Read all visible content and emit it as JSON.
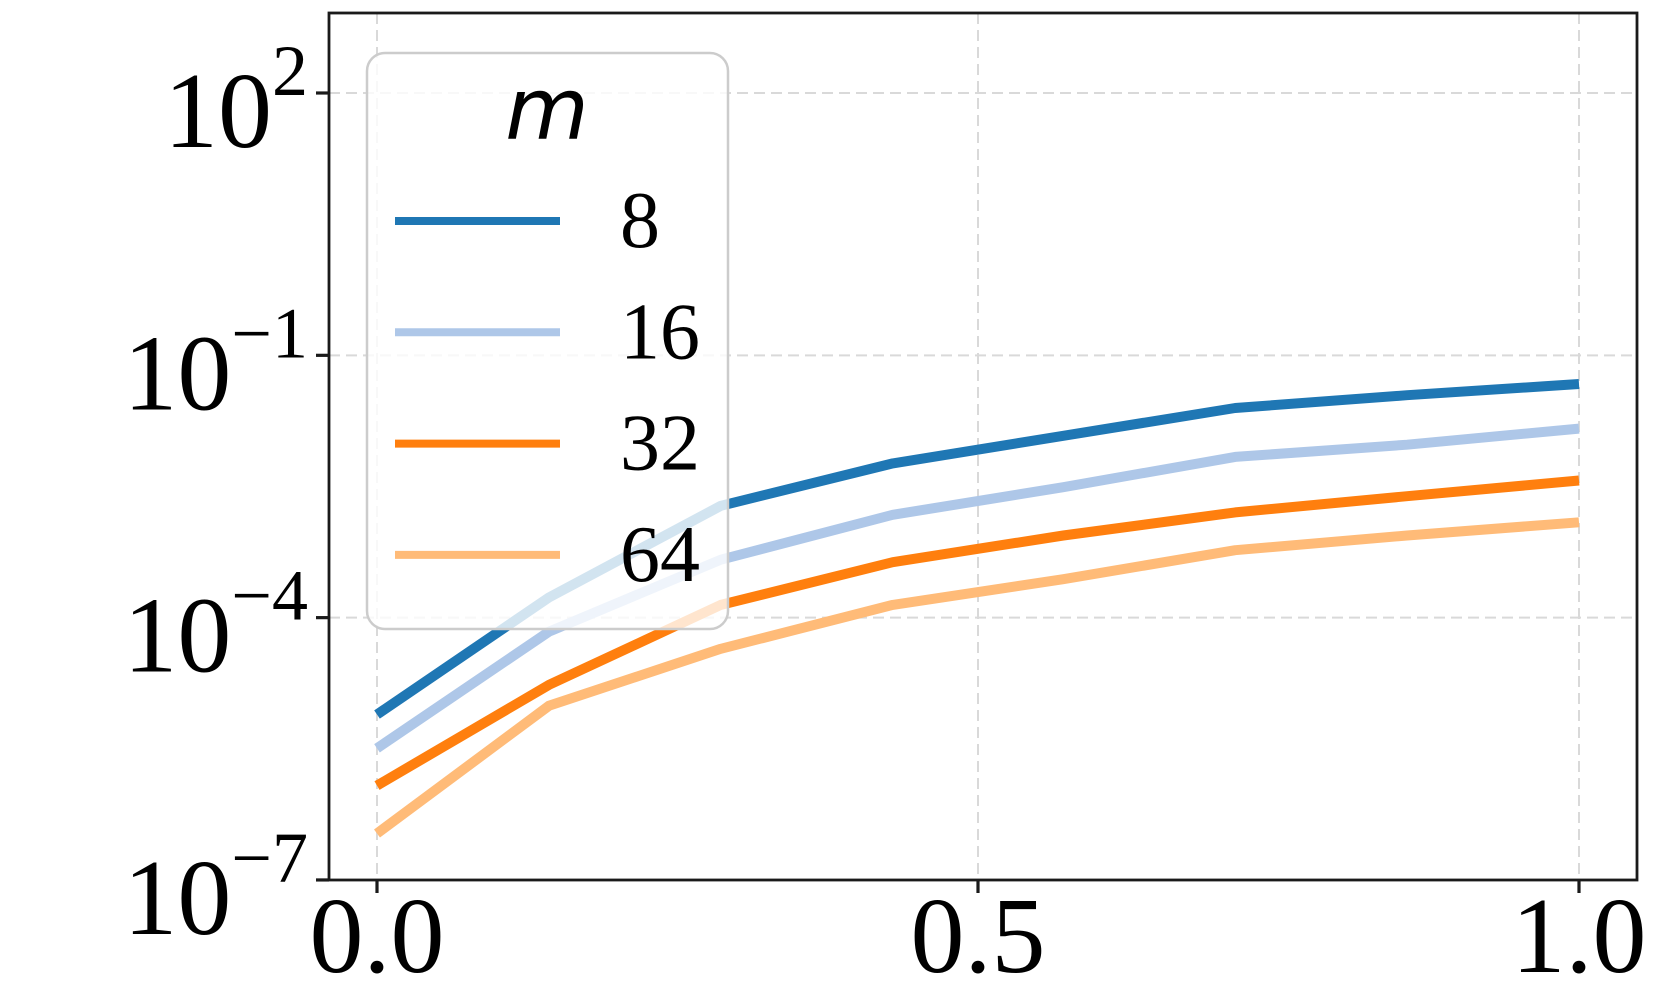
{
  "chart_data": {
    "type": "line",
    "title": "",
    "xlabel": "",
    "ylabel": "",
    "yscale": "log",
    "grid": true,
    "grid_style": "dashed",
    "xlim": [
      -0.04,
      1.048
    ],
    "ylim": [
      1e-07,
      820
    ],
    "x_ticks": [
      0.0,
      0.5,
      1.0
    ],
    "x_tick_labels": [
      "0.0",
      "0.5",
      "1.0"
    ],
    "y_tick_base": 10,
    "y_tick_exponents": [
      2,
      -1,
      -4,
      -7
    ],
    "y_tick_labels": [
      "10^2",
      "10^-1",
      "10^-4",
      "10^-7"
    ],
    "legend": {
      "title": "m",
      "position": "upper left",
      "entries": [
        "8",
        "16",
        "32",
        "64"
      ]
    },
    "x": [
      0.0,
      0.143,
      0.286,
      0.429,
      0.571,
      0.714,
      0.857,
      1.0
    ],
    "series": [
      {
        "name": "8",
        "color": "#1f77b4",
        "values": [
          7.8e-06,
          0.00017,
          0.0019,
          0.0058,
          0.012,
          0.025,
          0.035,
          0.047
        ]
      },
      {
        "name": "16",
        "color": "#aec7e8",
        "values": [
          3.2e-06,
          6.9e-05,
          0.00046,
          0.0015,
          0.0031,
          0.0069,
          0.0095,
          0.0145
        ]
      },
      {
        "name": "32",
        "color": "#ff7f0e",
        "values": [
          1.2e-06,
          1.7e-05,
          0.00014,
          0.00043,
          0.00087,
          0.0016,
          0.00245,
          0.0037
        ]
      },
      {
        "name": "64",
        "color": "#ffbb78",
        "values": [
          3.4e-07,
          9.8e-06,
          4.4e-05,
          0.00014,
          0.000275,
          0.00059,
          0.00087,
          0.00123
        ]
      }
    ],
    "colors": {
      "grid": "#d9d9d9",
      "spine": "#1a1a1a",
      "text": "#000000",
      "legend_border": "#cccccc",
      "legend_fill": "#ffffff"
    }
  }
}
